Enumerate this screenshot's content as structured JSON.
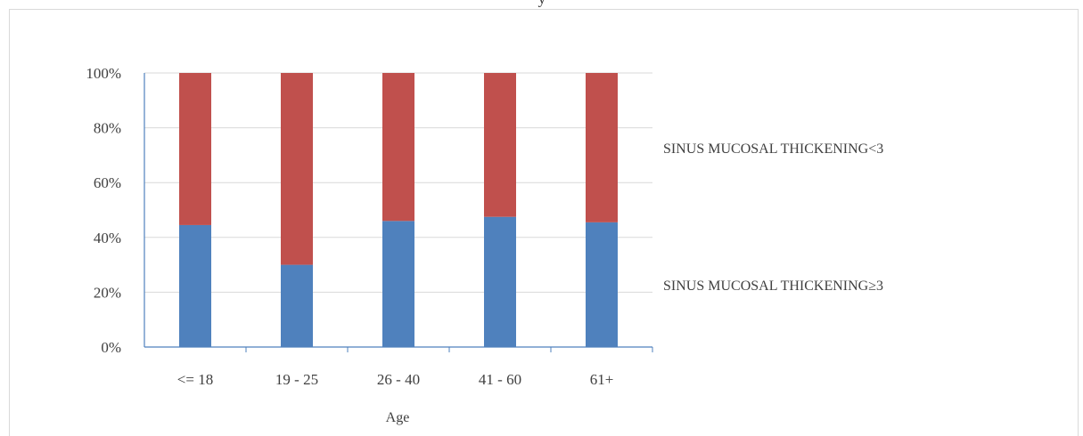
{
  "chart_data": {
    "type": "bar",
    "stacked": true,
    "percent": true,
    "title": "y",
    "xlabel": "Age",
    "ylabel": "",
    "ylim": [
      0,
      100
    ],
    "yticks": [
      "0%",
      "20%",
      "40%",
      "60%",
      "80%",
      "100%"
    ],
    "categories": [
      "<= 18",
      "19 - 25",
      "26 - 40",
      "41 - 60",
      "61+"
    ],
    "series": [
      {
        "name": "SINUS MUCOSAL THICKENING≥3",
        "color": "#4f81bd",
        "values": [
          44.5,
          30,
          46,
          47.5,
          45.5
        ]
      },
      {
        "name": "SINUS MUCOSAL THICKENING<3",
        "color": "#c0504d",
        "values": [
          55.5,
          70,
          54,
          52.5,
          54.5
        ]
      }
    ],
    "grid": true,
    "legend_position": "right"
  }
}
